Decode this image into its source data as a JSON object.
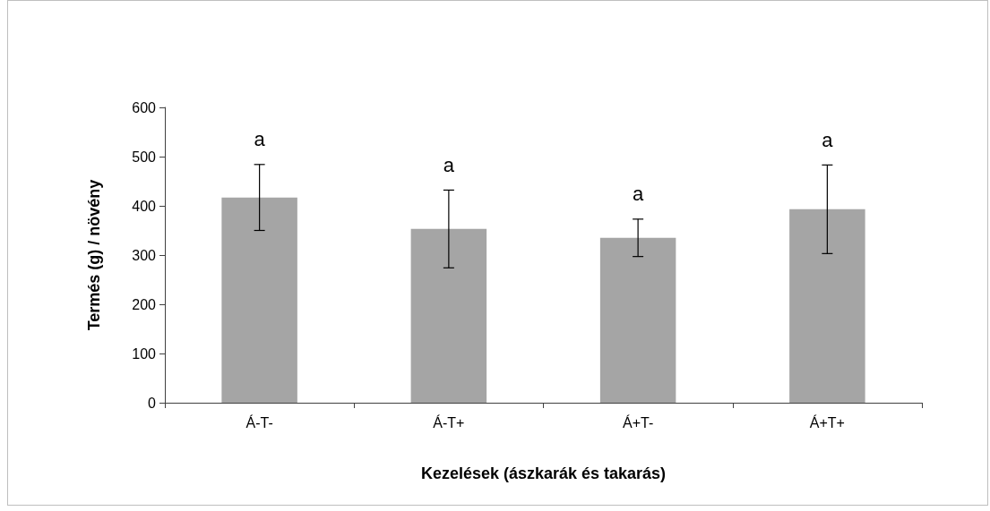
{
  "chart_data": {
    "type": "bar",
    "xlabel": "Kezelések (ászkarák és takarás)",
    "ylabel": "Termés (g) / növény",
    "categories": [
      "Á-T-",
      "Á-T+",
      "Á+T-",
      "Á+T+"
    ],
    "values": [
      417,
      353,
      335,
      393
    ],
    "errors": [
      67,
      79,
      38,
      90
    ],
    "color": "#a5a5a5",
    "ylim": [
      0,
      600
    ],
    "yticks": [
      0,
      100,
      200,
      300,
      400,
      500,
      600
    ],
    "grid": false,
    "annotations": [
      "a",
      "a",
      "a",
      "a"
    ]
  }
}
